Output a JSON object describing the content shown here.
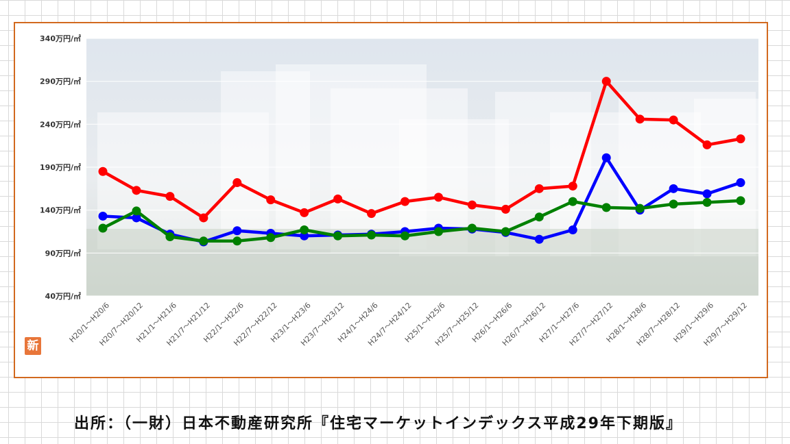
{
  "chart_data": {
    "type": "line",
    "title": "",
    "xlabel": "",
    "ylabel": "",
    "ylim": [
      40,
      340
    ],
    "yticks": [
      {
        "value": 40,
        "label": "40万円/㎡"
      },
      {
        "value": 90,
        "label": "90万円/㎡"
      },
      {
        "value": 140,
        "label": "140万円/㎡"
      },
      {
        "value": 190,
        "label": "190万円/㎡"
      },
      {
        "value": 240,
        "label": "240万円/㎡"
      },
      {
        "value": 290,
        "label": "290万円/㎡"
      },
      {
        "value": 340,
        "label": "340万円/㎡"
      }
    ],
    "grid": true,
    "categories": [
      "H20/1～H20/6",
      "H20/7～H20/12",
      "H21/1～H21/6",
      "H21/7～H21/12",
      "H22/1～H22/6",
      "H22/7～H22/12",
      "H23/1～H23/6",
      "H23/7～H23/12",
      "H24/1～H24/6",
      "H24/7～H24/12",
      "H25/1～H25/6",
      "H25/7～H25/12",
      "H26/1～H26/6",
      "H26/7～H26/12",
      "H27/1～H27/6",
      "H27/7～H27/12",
      "H28/1～H28/6",
      "H28/7～H28/12",
      "H29/1～H29/6",
      "H29/7～H29/12"
    ],
    "series": [
      {
        "color": "#ff0000",
        "values": [
          185,
          163,
          156,
          131,
          172,
          152,
          137,
          153,
          136,
          150,
          155,
          146,
          141,
          165,
          168,
          290,
          246,
          245,
          216,
          223
        ]
      },
      {
        "color": "#0000ff",
        "values": [
          133,
          131,
          112,
          103,
          116,
          113,
          110,
          111,
          112,
          115,
          119,
          118,
          114,
          106,
          117,
          201,
          140,
          165,
          159,
          172
        ]
      },
      {
        "color": "#008000",
        "values": [
          119,
          139,
          109,
          104,
          104,
          108,
          117,
          110,
          111,
          110,
          115,
          119,
          115,
          132,
          150,
          143,
          142,
          147,
          149,
          151
        ]
      }
    ]
  },
  "badge_text": "新",
  "source_caption": "出所：（一財）日本不動産研究所『住宅マーケットインデックス平成29年下期版』"
}
